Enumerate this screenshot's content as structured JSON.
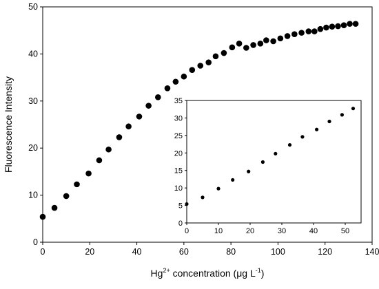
{
  "chart_data": [
    {
      "id": "main",
      "type": "scatter",
      "xlabel": "Hg²⁺ concentration (μg L⁻¹)",
      "xlabel_parts": {
        "base": "Hg",
        "sup1": "2+",
        "mid": " concentration (",
        "mu": "μ",
        "after_mu": "g L",
        "sup2": "-1",
        "end": ")"
      },
      "ylabel": "Fluorescence Intensity",
      "xlim": [
        0,
        140
      ],
      "ylim": [
        0,
        50
      ],
      "x_ticks": [
        0,
        20,
        40,
        60,
        80,
        100,
        120,
        140
      ],
      "y_ticks": [
        0,
        10,
        20,
        30,
        40,
        50
      ],
      "grid": false,
      "series": [
        {
          "color": "#000000",
          "points": [
            [
              0,
              5.4
            ],
            [
              5,
              7.3
            ],
            [
              10,
              9.8
            ],
            [
              14.5,
              12.3
            ],
            [
              19.5,
              14.6
            ],
            [
              24,
              17.4
            ],
            [
              28,
              19.7
            ],
            [
              32.5,
              22.3
            ],
            [
              36.5,
              24.6
            ],
            [
              41,
              26.7
            ],
            [
              45,
              29.0
            ],
            [
              49,
              30.8
            ],
            [
              53,
              32.7
            ],
            [
              56.5,
              34.1
            ],
            [
              60,
              35.2
            ],
            [
              63.5,
              36.6
            ],
            [
              67,
              37.5
            ],
            [
              70.5,
              38.2
            ],
            [
              73.5,
              39.5
            ],
            [
              77,
              40.2
            ],
            [
              80.5,
              41.4
            ],
            [
              83.5,
              42.2
            ],
            [
              86.5,
              41.3
            ],
            [
              89.5,
              41.9
            ],
            [
              92.5,
              42.2
            ],
            [
              95,
              42.9
            ],
            [
              98,
              42.7
            ],
            [
              101,
              43.3
            ],
            [
              104,
              43.8
            ],
            [
              107,
              44.2
            ],
            [
              110,
              44.5
            ],
            [
              113,
              44.8
            ],
            [
              115.5,
              44.8
            ],
            [
              118,
              45.3
            ],
            [
              120.5,
              45.6
            ],
            [
              123,
              45.8
            ],
            [
              125.5,
              45.9
            ],
            [
              128,
              46.1
            ],
            [
              130.5,
              46.4
            ],
            [
              133,
              46.4
            ]
          ]
        }
      ]
    },
    {
      "id": "inset",
      "type": "scatter",
      "xlim": [
        0,
        55
      ],
      "ylim": [
        0,
        35
      ],
      "x_ticks": [
        0,
        10,
        20,
        30,
        40,
        50
      ],
      "y_ticks": [
        0,
        5,
        10,
        15,
        20,
        25,
        30,
        35
      ],
      "grid": false,
      "series": [
        {
          "color": "#000000",
          "points": [
            [
              0,
              5.4
            ],
            [
              5,
              7.3
            ],
            [
              10,
              9.8
            ],
            [
              14.5,
              12.3
            ],
            [
              19.5,
              14.7
            ],
            [
              24,
              17.4
            ],
            [
              28,
              19.8
            ],
            [
              32.5,
              22.3
            ],
            [
              36.5,
              24.6
            ],
            [
              41,
              26.7
            ],
            [
              45,
              29.0
            ],
            [
              49,
              30.9
            ],
            [
              52.5,
              32.7
            ]
          ]
        }
      ]
    }
  ]
}
